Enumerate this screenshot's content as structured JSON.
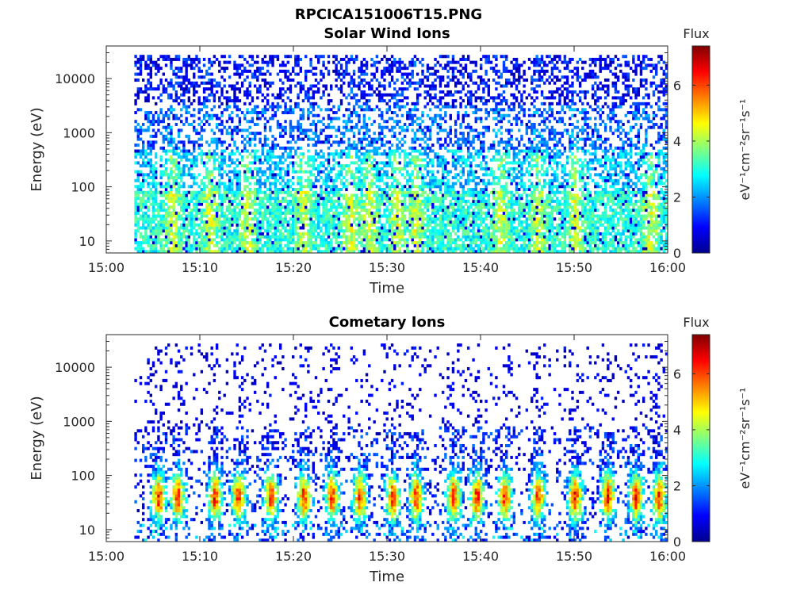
{
  "page": {
    "title": "RPCICA151006T15.PNG"
  },
  "colormap": {
    "name": "jet",
    "stops": [
      "#00008f",
      "#0000ff",
      "#0080ff",
      "#00ffff",
      "#80ff80",
      "#ffff00",
      "#ff8000",
      "#ff0000",
      "#800000"
    ]
  },
  "chart_data": [
    {
      "type": "heatmap",
      "title": "Solar Wind Ions",
      "xlabel": "Time",
      "ylabel": "Energy (eV)",
      "x_ticks": [
        "15:00",
        "15:10",
        "15:20",
        "15:30",
        "15:40",
        "15:50",
        "16:00"
      ],
      "x_range": [
        "15:00",
        "16:00"
      ],
      "data_time_range": [
        "15:03",
        "16:00"
      ],
      "y_scale": "log",
      "y_ticks": [
        10,
        100,
        1000,
        10000
      ],
      "y_tick_labels": [
        "10",
        "100",
        "1000",
        "10000"
      ],
      "ylim": [
        6,
        40000
      ],
      "colorbar": {
        "title": "Flux",
        "label": "eV⁻¹cm⁻²sr⁻¹s⁻¹",
        "range": [
          0,
          7.4
        ],
        "ticks": [
          0,
          2,
          4,
          6
        ],
        "tick_labels": [
          "0",
          "2",
          "4",
          "6"
        ]
      },
      "description_values": {
        "typical_flux_high_energy": 1.5,
        "typical_flux_low_energy": 3.0,
        "burst_times_min": [
          7,
          11,
          15,
          21,
          26,
          28,
          31,
          33,
          42,
          46,
          50,
          58
        ]
      }
    },
    {
      "type": "heatmap",
      "title": "Cometary Ions",
      "xlabel": "Time",
      "ylabel": "Energy (eV)",
      "x_ticks": [
        "15:00",
        "15:10",
        "15:20",
        "15:30",
        "15:40",
        "15:50",
        "16:00"
      ],
      "x_range": [
        "15:00",
        "16:00"
      ],
      "data_time_range": [
        "15:03",
        "16:00"
      ],
      "y_scale": "log",
      "y_ticks": [
        10,
        100,
        1000,
        10000
      ],
      "y_tick_labels": [
        "10",
        "100",
        "1000",
        "10000"
      ],
      "ylim": [
        6,
        40000
      ],
      "colorbar": {
        "title": "Flux",
        "label": "eV⁻¹cm⁻²sr⁻¹s⁻¹",
        "range": [
          0,
          7.4
        ],
        "ticks": [
          0,
          2,
          4,
          6
        ],
        "tick_labels": [
          "0",
          "2",
          "4",
          "6"
        ]
      },
      "description_values": {
        "peak_flux": 6.5,
        "peak_energy_eV": 40,
        "burst_times_min": [
          5.5,
          7.5,
          11.5,
          14,
          17.5,
          21,
          24,
          27,
          30.5,
          33,
          37,
          39.5,
          42.5,
          46,
          50,
          53.5,
          56.5,
          59
        ]
      }
    }
  ]
}
